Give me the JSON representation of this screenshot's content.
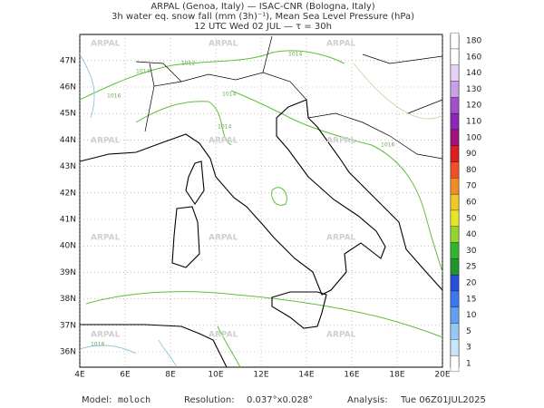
{
  "header": {
    "line1": "ARPAL (Genoa, Italy)  —  ISAC-CNR (Bologna, Italy)",
    "line2": "3h water eq. snow fall (mm (3h)⁻¹), Mean Sea Level Pressure (hPa)",
    "line3": "12 UTC Wed 02 JUL  —  τ = 30h"
  },
  "map": {
    "lat_labels": [
      "36N",
      "37N",
      "38N",
      "39N",
      "40N",
      "41N",
      "42N",
      "43N",
      "44N",
      "45N",
      "46N",
      "47N"
    ],
    "lon_labels": [
      "4E",
      "6E",
      "8E",
      "10E",
      "12E",
      "14E",
      "16E",
      "18E",
      "20E"
    ],
    "watermark": "ARPAL",
    "isobar_labels": [
      "1014",
      "1012",
      "1014",
      "1016",
      "1014",
      "1016",
      "1014",
      "1016"
    ]
  },
  "colorbar": [
    {
      "label": "1",
      "color": "#ffffff"
    },
    {
      "label": "3",
      "color": "#c8e6fa"
    },
    {
      "label": "5",
      "color": "#96c8f5"
    },
    {
      "label": "10",
      "color": "#64a0f0"
    },
    {
      "label": "15",
      "color": "#3c78f0"
    },
    {
      "label": "20",
      "color": "#2850dc"
    },
    {
      "label": "25",
      "color": "#1e962d"
    },
    {
      "label": "30",
      "color": "#32b432"
    },
    {
      "label": "40",
      "color": "#96d232"
    },
    {
      "label": "50",
      "color": "#e6e628"
    },
    {
      "label": "60",
      "color": "#f0c828"
    },
    {
      "label": "70",
      "color": "#f08c28"
    },
    {
      "label": "80",
      "color": "#f05028"
    },
    {
      "label": "90",
      "color": "#dc1e1e"
    },
    {
      "label": "100",
      "color": "#a0147a"
    },
    {
      "label": "110",
      "color": "#8c28b4"
    },
    {
      "label": "120",
      "color": "#a050c8"
    },
    {
      "label": "130",
      "color": "#c8a0e6"
    },
    {
      "label": "140",
      "color": "#e6d2f5"
    },
    {
      "label": "160",
      "color": "#ffffff"
    },
    {
      "label": "180",
      "color": "#ffffff"
    }
  ],
  "footer": {
    "model_label": "Model:",
    "model": "moloch",
    "resolution_label": "Resolution:",
    "resolution": "0.037°x0.028°",
    "analysis_label": "Analysis:",
    "analysis": "Tue 06Z01JUL2025"
  }
}
